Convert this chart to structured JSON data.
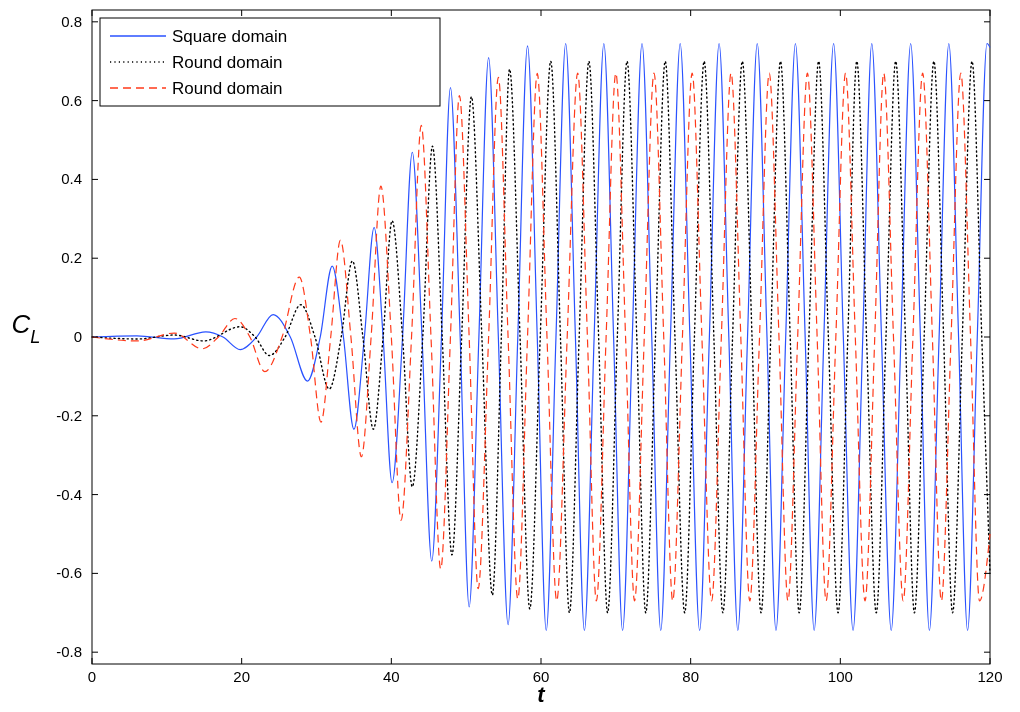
{
  "chart_data": {
    "type": "line",
    "xlabel": "t",
    "ylabel": "C$_{L}$",
    "xlim": [
      0,
      120
    ],
    "xticks": [
      0,
      20,
      40,
      60,
      80,
      100,
      120
    ],
    "ylim": [
      -0.83,
      0.83
    ],
    "yticks": [
      -0.8,
      -0.6,
      -0.4,
      -0.2,
      0,
      0.2,
      0.4,
      0.6,
      0.8
    ],
    "grid": false,
    "legend": "top left",
    "marker": "none",
    "series": [
      {
        "name": "Square domain",
        "color": "#2a52ff",
        "line_style": "solid",
        "x": [
          0,
          6,
          11,
          15.2,
          17.5,
          19.8,
          22.0,
          24.2,
          26.5,
          28.8,
          30.5,
          32.1,
          33.6,
          35.0,
          36.4,
          37.7,
          38.9,
          40.1,
          41.5,
          42.8,
          44.1,
          45.4,
          46.7,
          47.9,
          49.2,
          50.4,
          51.7,
          53.0,
          54.3,
          55.6,
          56.9,
          58.2,
          59.5,
          60.7,
          62.0,
          63.3,
          64.6,
          65.8,
          67.1,
          68.4,
          69.7,
          70.9,
          72.2,
          73.5,
          74.8,
          76.0,
          77.3,
          78.6,
          79.9,
          81.2,
          82.5,
          83.8,
          85.1,
          86.3,
          87.6,
          88.9,
          90.2,
          91.4,
          92.7,
          94.0,
          95.3,
          96.5,
          97.8,
          99.1,
          100.4,
          101.7,
          103.0,
          104.2,
          105.5,
          106.8,
          108.1,
          109.4,
          110.7,
          111.9,
          113.2,
          114.5,
          115.8,
          117.0,
          118.3,
          119.6,
          120
        ],
        "values": [
          0,
          0.003,
          -0.005,
          0.013,
          0,
          -0.032,
          0,
          0.057,
          0,
          -0.112,
          0,
          0.18,
          0,
          -0.234,
          0,
          0.278,
          0,
          -0.37,
          0,
          0.469,
          0,
          -0.569,
          0,
          0.633,
          0,
          -0.685,
          0,
          0.709,
          0,
          -0.73,
          0,
          0.739,
          0,
          -0.745,
          0,
          0.745,
          0,
          -0.745,
          0,
          0.745,
          0,
          -0.745,
          0,
          0.745,
          0,
          -0.745,
          0,
          0.745,
          0,
          -0.745,
          0,
          0.745,
          0,
          -0.745,
          0,
          0.745,
          0,
          -0.745,
          0,
          0.745,
          0,
          -0.745,
          0,
          0.745,
          0,
          -0.745,
          0,
          0.745,
          0,
          -0.745,
          0,
          0.745,
          0,
          -0.745,
          0,
          0.745,
          0,
          -0.745,
          0,
          0.745,
          0.735
        ]
      },
      {
        "name": "Round domain",
        "color": "#000000",
        "line_style": "dotted",
        "x": [
          0,
          6.1,
          11.0,
          14.9,
          19.8,
          21.8,
          23.7,
          25.8,
          27.9,
          29.8,
          31.7,
          33.3,
          34.8,
          36.2,
          37.6,
          38.9,
          40.1,
          41.5,
          42.8,
          44.2,
          45.5,
          46.8,
          48.1,
          49.4,
          50.7,
          52.1,
          53.5,
          54.7,
          55.8,
          57.2,
          58.5,
          59.9,
          61.3,
          62.6,
          63.8,
          65.1,
          66.4,
          67.7,
          68.9,
          70.2,
          71.5,
          72.8,
          74.0,
          75.3,
          76.6,
          77.9,
          79.2,
          80.5,
          81.8,
          83.1,
          84.3,
          85.6,
          86.9,
          88.2,
          89.4,
          90.7,
          92.0,
          93.3,
          94.5,
          95.8,
          97.1,
          98.4,
          99.7,
          101.0,
          102.2,
          103.5,
          104.8,
          106.1,
          107.4,
          108.7,
          109.9,
          111.2,
          112.5,
          113.8,
          115.0,
          116.3,
          117.6,
          118.9,
          120
        ],
        "values": [
          0,
          -0.005,
          0.005,
          -0.01,
          0.026,
          0,
          -0.047,
          0,
          0.082,
          0,
          -0.132,
          0,
          0.193,
          0,
          -0.234,
          0,
          0.295,
          0,
          -0.38,
          0,
          0.484,
          0,
          -0.553,
          0,
          0.61,
          0,
          -0.655,
          0,
          0.68,
          0,
          -0.69,
          0,
          0.7,
          0,
          -0.7,
          0,
          0.7,
          0,
          -0.7,
          0,
          0.7,
          0,
          -0.7,
          0,
          0.7,
          0,
          -0.7,
          0,
          0.7,
          0,
          -0.7,
          0,
          0.7,
          0,
          -0.7,
          0,
          0.7,
          0,
          -0.7,
          0,
          0.7,
          0,
          -0.7,
          0,
          0.7,
          0,
          -0.7,
          0,
          0.7,
          0,
          -0.7,
          0,
          0.7,
          0,
          -0.7,
          0,
          0.7,
          0,
          -0.6
        ]
      },
      {
        "name": "Round domain",
        "color": "#ff3a1a",
        "line_style": "dashed",
        "x": [
          0,
          6.1,
          11.0,
          14.7,
          16.9,
          19.1,
          21.1,
          23.1,
          25.4,
          27.7,
          29.2,
          30.6,
          31.9,
          33.2,
          34.6,
          36.0,
          37.3,
          38.6,
          40.0,
          41.3,
          42.7,
          44.0,
          45.3,
          46.6,
          47.9,
          49.1,
          50.4,
          51.6,
          53.0,
          54.3,
          55.6,
          56.9,
          58.2,
          59.5,
          60.8,
          62.1,
          63.5,
          64.9,
          66.2,
          67.4,
          68.7,
          70.0,
          71.3,
          72.5,
          73.8,
          75.1,
          76.4,
          77.6,
          78.9,
          80.2,
          81.5,
          82.8,
          84.1,
          85.4,
          86.7,
          87.9,
          89.2,
          90.5,
          91.8,
          93.0,
          94.3,
          95.6,
          96.9,
          98.1,
          99.4,
          100.7,
          102.0,
          103.3,
          104.6,
          105.8,
          107.1,
          108.4,
          109.7,
          111.0,
          112.3,
          113.5,
          114.8,
          116.1,
          117.4,
          118.6,
          120
        ],
        "values": [
          0,
          -0.01,
          0.01,
          -0.03,
          0,
          0.047,
          0,
          -0.088,
          0,
          0.152,
          0,
          -0.216,
          0,
          0.246,
          0,
          -0.304,
          0,
          0.383,
          0,
          -0.465,
          0,
          0.537,
          0,
          -0.589,
          0,
          0.613,
          0,
          -0.639,
          0,
          0.659,
          0,
          -0.665,
          0,
          0.669,
          0,
          -0.67,
          0,
          0.67,
          0,
          -0.67,
          0,
          0.67,
          0,
          -0.67,
          0,
          0.67,
          0,
          -0.67,
          0,
          0.67,
          0,
          -0.67,
          0,
          0.67,
          0,
          -0.67,
          0,
          0.67,
          0,
          -0.67,
          0,
          0.67,
          0,
          -0.67,
          0,
          0.67,
          0,
          -0.67,
          0,
          0.67,
          0,
          -0.67,
          0,
          0.67,
          0,
          -0.67,
          0,
          0.67,
          0,
          -0.67,
          -0.5
        ]
      }
    ]
  }
}
